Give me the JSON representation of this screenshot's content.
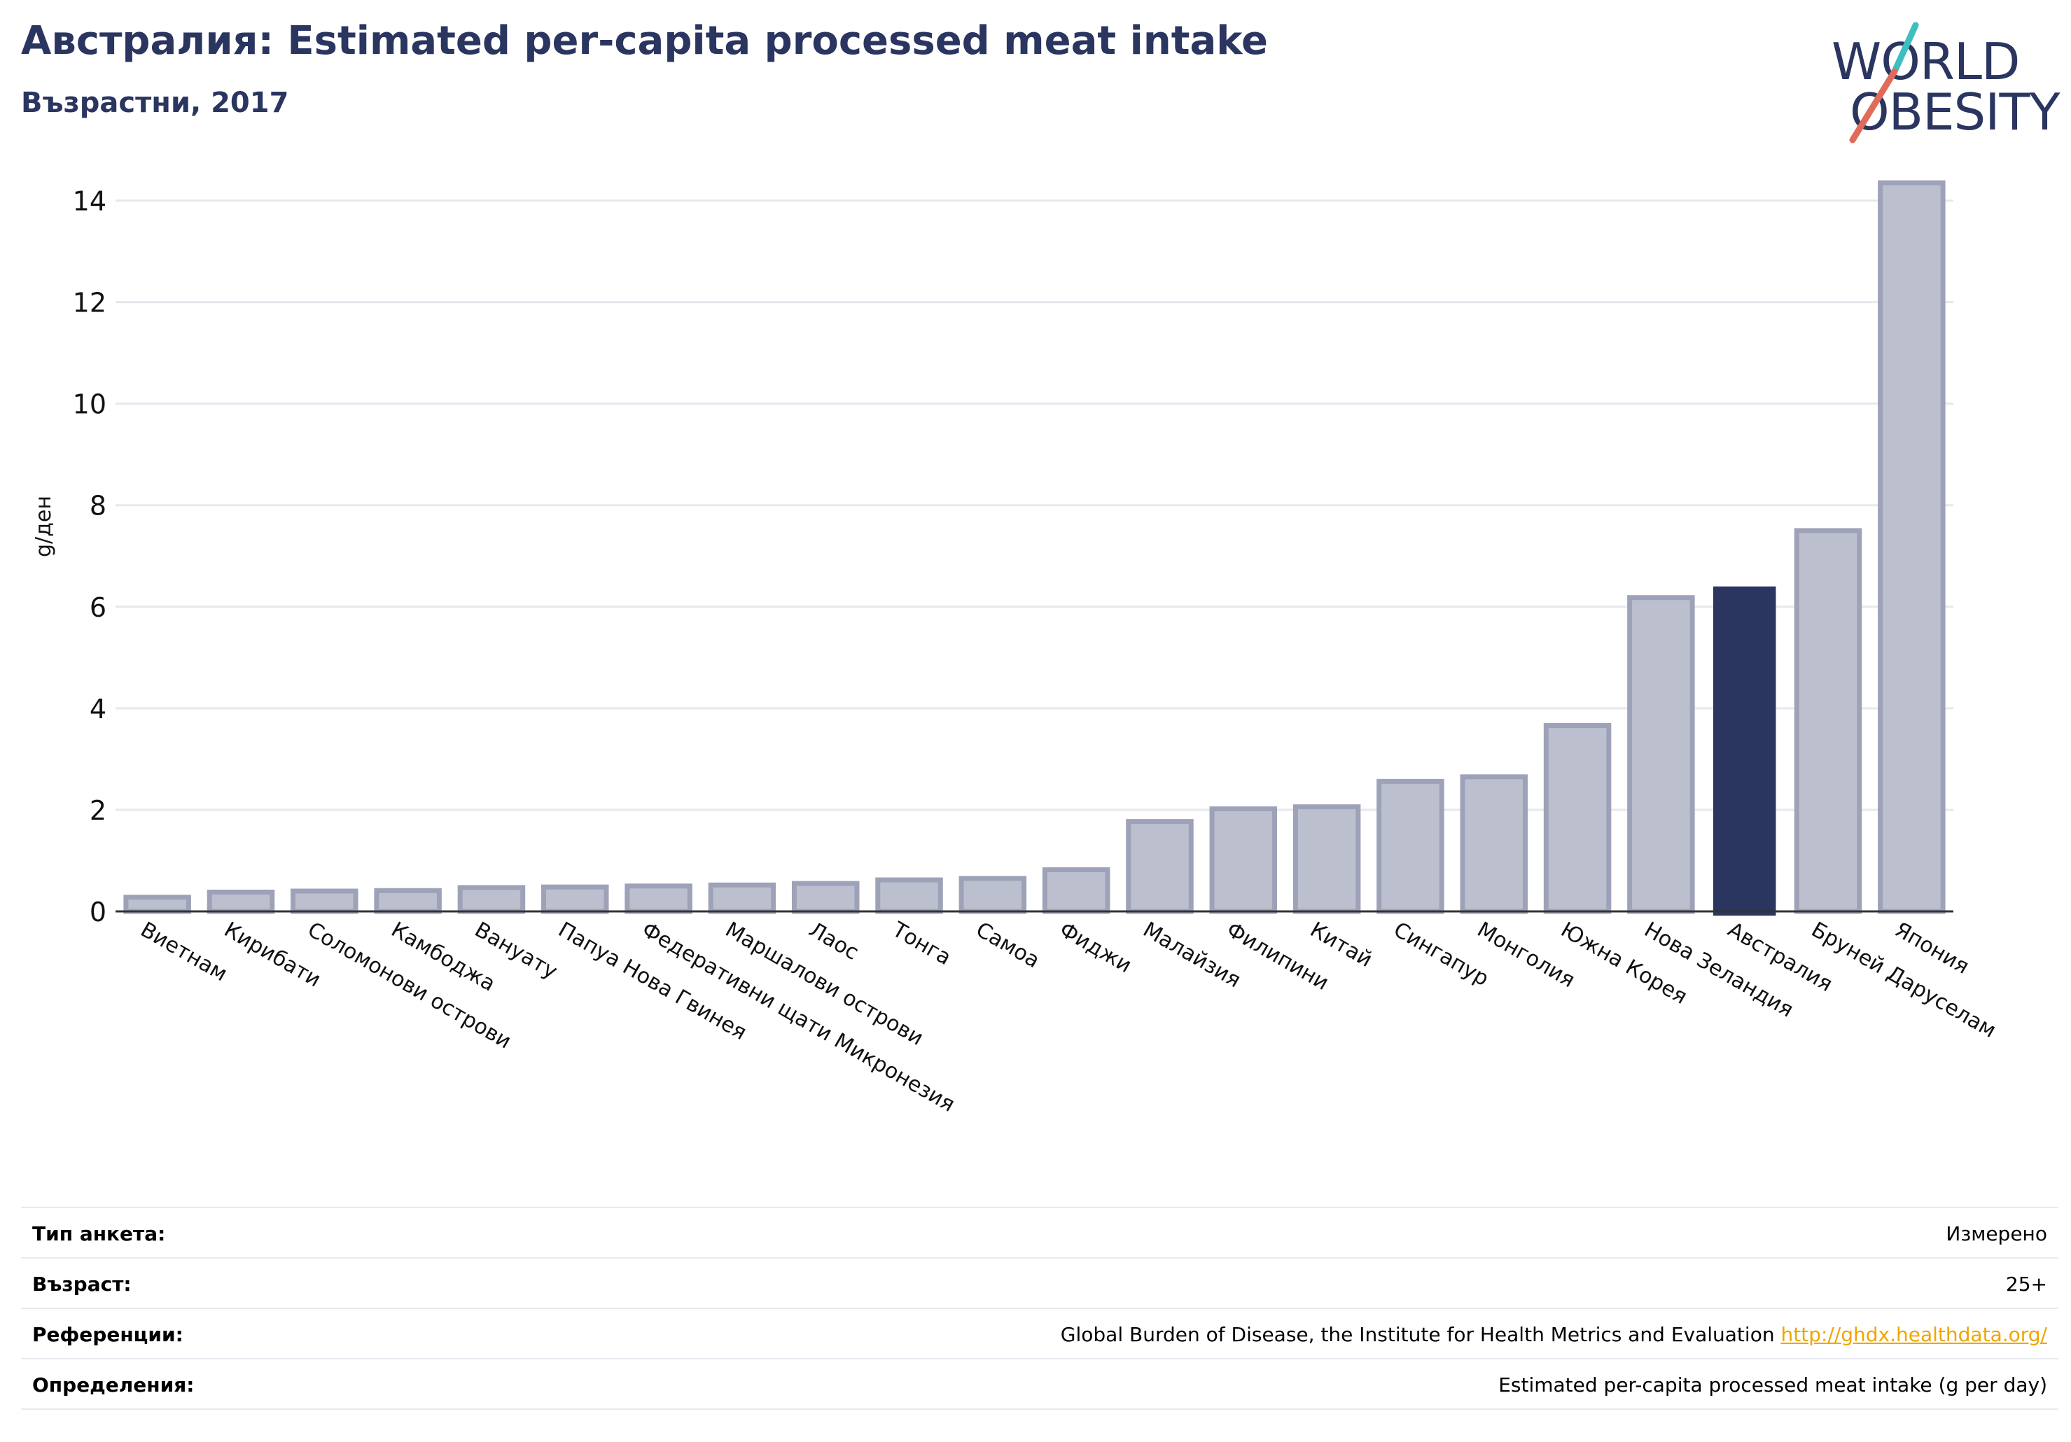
{
  "title": "Австралия: Estimated per-capita processed meat intake",
  "subtitle": "Възрастни, 2017",
  "logo": {
    "line1": "WORLD",
    "line2": "OBESITY"
  },
  "colors": {
    "bar": "#bcc0ce",
    "bar_border": "#9da2b8",
    "highlight": "#2a3560",
    "grid": "#e6e8ee",
    "axis": "#333333",
    "accent_teal": "#3dbfbf",
    "accent_red": "#e06b5b"
  },
  "chart_data": {
    "type": "bar",
    "ylabel": "g/ден",
    "ylim": [
      0,
      14.6
    ],
    "yticks": [
      0,
      2,
      4,
      6,
      8,
      10,
      12,
      14
    ],
    "grid": true,
    "highlight": "Австралия",
    "categories": [
      "Виетнам",
      "Кирибати",
      "Соломонови острови",
      "Камбоджа",
      "Вануату",
      "Папуа Нова Гвинея",
      "Федеративни щати Микронезия",
      "Маршалови острови",
      "Лаос",
      "Тонга",
      "Самоа",
      "Фиджи",
      "Малайзия",
      "Филипини",
      "Китай",
      "Сингапур",
      "Монголия",
      "Южна Корея",
      "Нова Зеландия",
      "Австралия",
      "Бруней Даруселам",
      "Япония"
    ],
    "values": [
      0.28,
      0.38,
      0.4,
      0.41,
      0.47,
      0.48,
      0.5,
      0.52,
      0.55,
      0.62,
      0.65,
      0.82,
      1.77,
      2.02,
      2.06,
      2.56,
      2.65,
      3.66,
      6.18,
      6.4,
      7.5,
      14.35
    ]
  },
  "footer": {
    "rows": [
      {
        "label": "Тип анкета:",
        "value": "Измерено"
      },
      {
        "label": "Възраст:",
        "value": "25+"
      },
      {
        "label": "Референции:",
        "value": "Global Burden of Disease, the Institute for Health Metrics and Evaluation",
        "link": "http://ghdx.healthdata.org/"
      },
      {
        "label": "Определения:",
        "value": "Estimated per-capita processed meat intake (g per day)"
      }
    ]
  }
}
